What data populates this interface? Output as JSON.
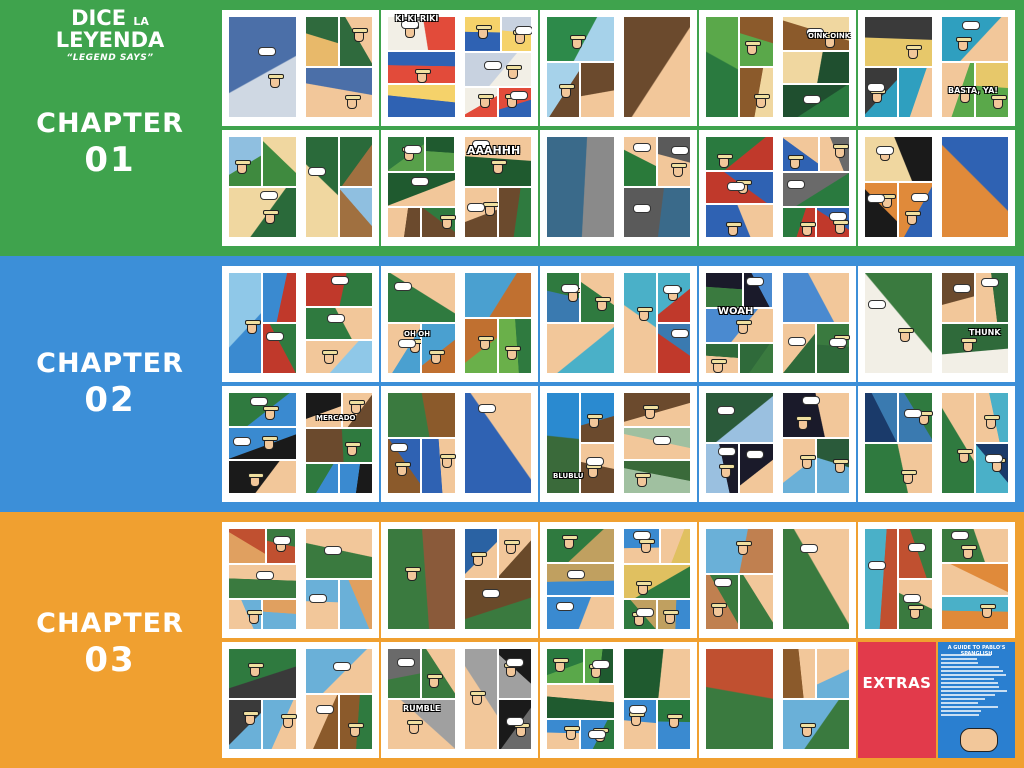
{
  "logo": {
    "word1": "DICE",
    "word1_small": "LA",
    "word2": "LEYENDA",
    "tagline": "“LEGEND SAYS”"
  },
  "colors": {
    "chapter1": "#3fa34d",
    "chapter2": "#3c8fd8",
    "chapter3": "#f0a030",
    "extras": "#e23a4b"
  },
  "chapters": [
    {
      "word": "CHAPTER",
      "number": "01"
    },
    {
      "word": "CHAPTER",
      "number": "02"
    },
    {
      "word": "CHAPTER",
      "number": "03"
    }
  ],
  "sound_effects": {
    "kikiriki": "KI-KI-RIKI",
    "oink": "OINK OINK",
    "basta": "BASTA, YA!",
    "aaahhh": "AAAHHH",
    "oh_oh": "OH OH",
    "woah": "WOAH",
    "thunk": "THUNK",
    "mercado": "MERCADO",
    "blublu": "BLUBLU",
    "rumble": "RUMBLE"
  },
  "extras": {
    "label": "EXTRAS",
    "guide_title": "A GUIDE TO PABLO'S SPANGLISH"
  }
}
